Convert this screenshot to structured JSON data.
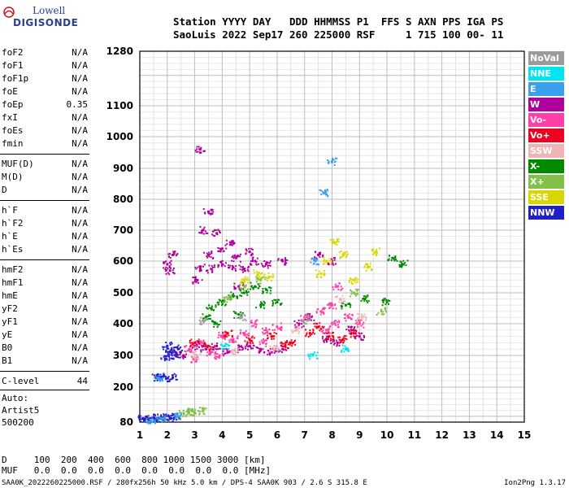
{
  "logo": {
    "line1": "Lowell",
    "line2": "DIGISONDE"
  },
  "header": {
    "line1": "Station YYYY DAY   DDD HHMMSS P1  FFS S AXN PPS IGA PS",
    "line2": "SaoLuis 2022 Sep17 260 225000 RSF     1 715 100 00- 11"
  },
  "params": {
    "group1": [
      {
        "name": "foF2",
        "value": "N/A"
      },
      {
        "name": "foF1",
        "value": "N/A"
      },
      {
        "name": "foF1p",
        "value": "N/A"
      },
      {
        "name": "foE",
        "value": "N/A"
      },
      {
        "name": "foEp",
        "value": "0.35"
      },
      {
        "name": "fxI",
        "value": "N/A"
      },
      {
        "name": "foEs",
        "value": "N/A"
      },
      {
        "name": "fmin",
        "value": "N/A"
      }
    ],
    "group2": [
      {
        "name": "MUF(D)",
        "value": "N/A"
      },
      {
        "name": "M(D)",
        "value": "N/A"
      },
      {
        "name": "D",
        "value": "N/A"
      }
    ],
    "group3": [
      {
        "name": "h`F",
        "value": "N/A"
      },
      {
        "name": "h`F2",
        "value": "N/A"
      },
      {
        "name": "h`E",
        "value": "N/A"
      },
      {
        "name": "h`Es",
        "value": "N/A"
      }
    ],
    "group4": [
      {
        "name": "hmF2",
        "value": "N/A"
      },
      {
        "name": "hmF1",
        "value": "N/A"
      },
      {
        "name": "hmE",
        "value": "N/A"
      },
      {
        "name": "yF2",
        "value": "N/A"
      },
      {
        "name": "yF1",
        "value": "N/A"
      },
      {
        "name": "yE",
        "value": "N/A"
      },
      {
        "name": "B0",
        "value": "N/A"
      },
      {
        "name": "B1",
        "value": "N/A"
      }
    ],
    "clevel": {
      "name": "C-level",
      "value": "44"
    }
  },
  "auto": {
    "line1": "Auto:",
    "line2": "Artist5",
    "line3": "500200"
  },
  "legend": [
    {
      "label": "NoVal",
      "color": "#9b9b9b"
    },
    {
      "label": "NNE",
      "color": "#00e5f0"
    },
    {
      "label": "E",
      "color": "#3aa0ee"
    },
    {
      "label": "W",
      "color": "#b0009b"
    },
    {
      "label": "Vo-",
      "color": "#ff3fa6"
    },
    {
      "label": "Vo+",
      "color": "#ee0020"
    },
    {
      "label": "SSW",
      "color": "#f0b4b4"
    },
    {
      "label": "X-",
      "color": "#008a00"
    },
    {
      "label": "X+",
      "color": "#82c04a"
    },
    {
      "label": "SSE",
      "color": "#d8d800"
    },
    {
      "label": "NNW",
      "color": "#2020c8"
    }
  ],
  "bottom": {
    "row1": "D     100  200  400  600  800 1000 1500 3000 [km]",
    "row2": "MUF   0.0  0.0  0.0  0.0  0.0  0.0  0.0  0.0 [MHz]"
  },
  "footer": {
    "left": "SAA0K_2022260225000.RSF / 280fx256h 50 kHz 5.0 km / DPS-4 SAA0K 903 / 2.6 S 315.8 E",
    "right": "Ion2Png 1.3.17"
  },
  "chart_data": {
    "type": "scatter",
    "title": "",
    "xlabel": "",
    "ylabel": "",
    "xlim": [
      1,
      15
    ],
    "ylim": [
      80,
      1280
    ],
    "x_ticks": [
      1,
      2,
      3,
      4,
      5,
      6,
      7,
      8,
      9,
      10,
      11,
      12,
      13,
      14,
      15
    ],
    "y_ticks": [
      80,
      200,
      300,
      400,
      500,
      600,
      700,
      800,
      900,
      1000,
      1100,
      1280
    ],
    "grid": true,
    "legend_position": "right",
    "series": [
      {
        "name": "W",
        "color": "#b0009b",
        "points": [
          [
            2.3,
            310
          ],
          [
            2.6,
            300
          ],
          [
            3.0,
            330
          ],
          [
            3.4,
            320
          ],
          [
            3.8,
            330
          ],
          [
            4.2,
            310
          ],
          [
            4.6,
            320
          ],
          [
            5.0,
            330
          ],
          [
            5.4,
            320
          ],
          [
            5.8,
            310
          ],
          [
            6.2,
            320
          ],
          [
            3.2,
            580
          ],
          [
            3.6,
            575
          ],
          [
            4.0,
            590
          ],
          [
            4.4,
            580
          ],
          [
            4.8,
            575
          ],
          [
            5.2,
            600
          ],
          [
            5.6,
            590
          ],
          [
            3.5,
            620
          ],
          [
            4.0,
            640
          ],
          [
            4.5,
            610
          ],
          [
            5.0,
            630
          ],
          [
            3.3,
            700
          ],
          [
            3.8,
            690
          ],
          [
            4.3,
            660
          ],
          [
            6.8,
            400
          ],
          [
            7.2,
            420
          ],
          [
            7.8,
            350
          ],
          [
            8.2,
            340
          ],
          [
            8.7,
            380
          ],
          [
            9.0,
            360
          ],
          [
            2.0,
            590
          ],
          [
            2.1,
            570
          ],
          [
            3.5,
            760
          ],
          [
            3.2,
            960
          ],
          [
            7.5,
            620
          ],
          [
            8.0,
            600
          ],
          [
            6.2,
            600
          ],
          [
            2.2,
            620
          ],
          [
            3.1,
            540
          ],
          [
            4.6,
            520
          ]
        ]
      },
      {
        "name": "Vo-",
        "color": "#ff3fa6",
        "points": [
          [
            2.8,
            320
          ],
          [
            3.2,
            340
          ],
          [
            3.6,
            310
          ],
          [
            4.0,
            360
          ],
          [
            4.4,
            350
          ],
          [
            4.8,
            370
          ],
          [
            5.2,
            400
          ],
          [
            5.6,
            380
          ],
          [
            6.0,
            390
          ],
          [
            7.0,
            420
          ],
          [
            7.6,
            440
          ],
          [
            8.0,
            460
          ],
          [
            8.2,
            520
          ],
          [
            8.6,
            420
          ],
          [
            9.0,
            400
          ],
          [
            7.8,
            380
          ],
          [
            8.1,
            400
          ],
          [
            3.0,
            290
          ],
          [
            3.9,
            300
          ],
          [
            5.5,
            340
          ]
        ]
      },
      {
        "name": "Vo+",
        "color": "#ee0020",
        "points": [
          [
            3.0,
            340
          ],
          [
            3.5,
            330
          ],
          [
            4.2,
            370
          ],
          [
            5.0,
            350
          ],
          [
            5.8,
            360
          ],
          [
            6.5,
            340
          ],
          [
            7.2,
            370
          ],
          [
            7.9,
            360
          ],
          [
            8.4,
            350
          ],
          [
            8.8,
            370
          ],
          [
            6.3,
            330
          ],
          [
            7.5,
            390
          ]
        ]
      },
      {
        "name": "NNW",
        "color": "#2020c8",
        "points": [
          [
            1.1,
            92
          ],
          [
            1.3,
            90
          ],
          [
            1.5,
            95
          ],
          [
            1.7,
            93
          ],
          [
            1.9,
            96
          ],
          [
            2.1,
            94
          ],
          [
            2.3,
            98
          ],
          [
            1.6,
            230
          ],
          [
            1.8,
            232
          ],
          [
            2.0,
            228
          ],
          [
            2.2,
            230
          ],
          [
            2.0,
            330
          ],
          [
            2.1,
            310
          ],
          [
            2.3,
            300
          ],
          [
            1.95,
            290
          ],
          [
            2.4,
            320
          ]
        ]
      },
      {
        "name": "E",
        "color": "#3aa0ee",
        "points": [
          [
            1.4,
            86
          ],
          [
            1.8,
            92
          ],
          [
            2.4,
            100
          ],
          [
            1.7,
            226
          ],
          [
            7.7,
            820
          ],
          [
            8.0,
            920
          ],
          [
            7.4,
            600
          ]
        ]
      },
      {
        "name": "X-",
        "color": "#008a00",
        "points": [
          [
            3.6,
            450
          ],
          [
            4.0,
            470
          ],
          [
            4.4,
            490
          ],
          [
            4.8,
            500
          ],
          [
            5.2,
            520
          ],
          [
            5.6,
            510
          ],
          [
            6.0,
            470
          ],
          [
            3.4,
            420
          ],
          [
            3.8,
            400
          ],
          [
            4.6,
            430
          ],
          [
            5.4,
            460
          ],
          [
            10.2,
            610
          ],
          [
            10.6,
            590
          ],
          [
            10.0,
            470
          ],
          [
            8.5,
            460
          ],
          [
            9.2,
            480
          ]
        ]
      },
      {
        "name": "X+",
        "color": "#82c04a",
        "points": [
          [
            2.6,
            110
          ],
          [
            2.8,
            115
          ],
          [
            3.0,
            112
          ],
          [
            3.3,
            118
          ],
          [
            4.2,
            480
          ],
          [
            4.8,
            520
          ],
          [
            5.4,
            540
          ],
          [
            9.8,
            440
          ],
          [
            8.8,
            500
          ]
        ]
      },
      {
        "name": "SSE",
        "color": "#d8d800",
        "points": [
          [
            4.8,
            540
          ],
          [
            5.3,
            560
          ],
          [
            5.7,
            550
          ],
          [
            7.8,
            600
          ],
          [
            8.1,
            660
          ],
          [
            8.4,
            620
          ],
          [
            8.8,
            540
          ],
          [
            9.3,
            580
          ],
          [
            9.6,
            630
          ],
          [
            7.6,
            560
          ]
        ]
      },
      {
        "name": "SSW",
        "color": "#f0b4b4",
        "points": [
          [
            3.1,
            300
          ],
          [
            4.5,
            310
          ],
          [
            5.9,
            320
          ],
          [
            6.7,
            380
          ],
          [
            8.3,
            480
          ],
          [
            9.1,
            420
          ]
        ]
      },
      {
        "name": "NNE",
        "color": "#00e5f0",
        "points": [
          [
            4.1,
            330
          ],
          [
            7.3,
            300
          ],
          [
            8.5,
            320
          ]
        ]
      },
      {
        "name": "NoVal",
        "color": "#9b9b9b",
        "points": [
          [
            3.3,
            410
          ],
          [
            4.7,
            420
          ],
          [
            7.1,
            410
          ]
        ]
      }
    ]
  }
}
